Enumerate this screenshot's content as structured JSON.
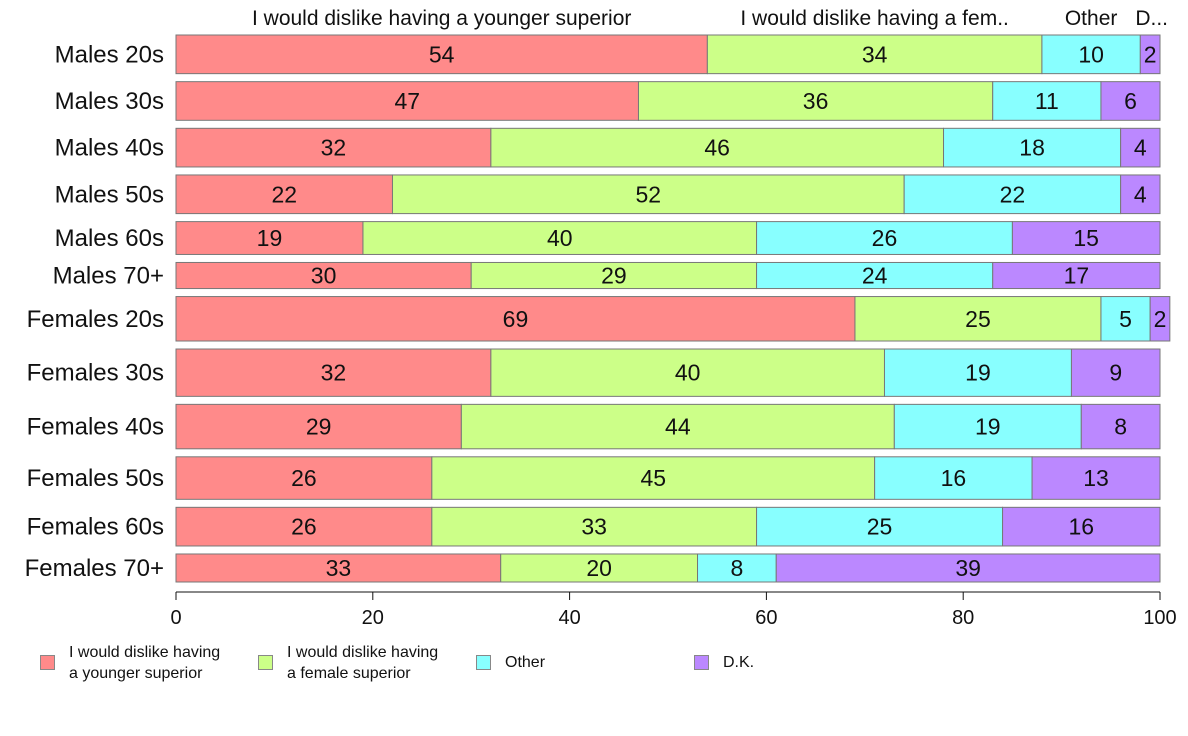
{
  "chart_data": {
    "type": "bar",
    "orientation": "horizontal",
    "stacked": true,
    "categories": [
      "Males 20s",
      "Males 30s",
      "Males 40s",
      "Males 50s",
      "Males 60s",
      "Males 70+",
      "Females 20s",
      "Females 30s",
      "Females 40s",
      "Females 50s",
      "Females 60s",
      "Females 70+"
    ],
    "series": [
      {
        "name": "I would dislike having a younger superior",
        "legend_label": "I would dislike having\na younger superior",
        "header_label": "I would dislike having a younger superior",
        "color": "#ff8a8a",
        "values": [
          54,
          47,
          32,
          22,
          19,
          30,
          69,
          32,
          29,
          26,
          26,
          33
        ]
      },
      {
        "name": "I would dislike having a female superior",
        "legend_label": "I would dislike having\na female superior",
        "header_label": "I would dislike having a fem..",
        "color": "#ccff88",
        "values": [
          34,
          36,
          46,
          52,
          40,
          29,
          25,
          40,
          44,
          45,
          33,
          20
        ]
      },
      {
        "name": "Other",
        "legend_label": "Other",
        "header_label": "Other",
        "color": "#88ffff",
        "values": [
          10,
          11,
          18,
          22,
          26,
          24,
          5,
          19,
          19,
          16,
          25,
          8
        ]
      },
      {
        "name": "D.K.",
        "legend_label": "D.K.",
        "header_label": "D...",
        "color": "#bb88ff",
        "values": [
          2,
          6,
          4,
          4,
          15,
          17,
          2,
          9,
          8,
          13,
          16,
          39
        ]
      }
    ],
    "row_weights": [
      40,
      40,
      40,
      40,
      34,
      27,
      46,
      49,
      46,
      44,
      40,
      29
    ],
    "xlim": [
      0,
      100
    ],
    "xticks": [
      "0",
      "20",
      "40",
      "60",
      "80",
      "100"
    ],
    "xlabel": "",
    "ylabel": "",
    "title": "",
    "grid": false,
    "legend_position": "bottom"
  }
}
